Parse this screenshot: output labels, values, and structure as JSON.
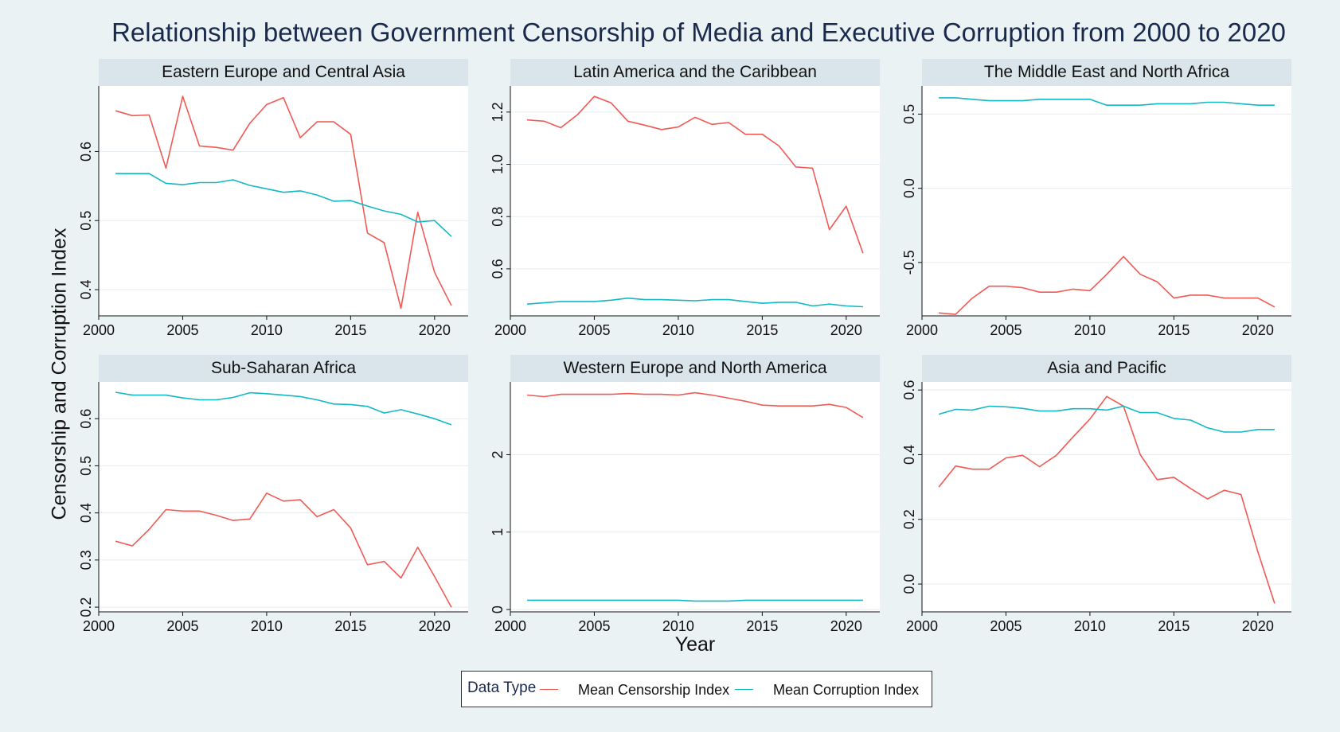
{
  "title": "Relationship between Government Censorship of Media and Executive Corruption from 2000 to 2020",
  "ylabel": "Censorship and Corruption Index",
  "xlabel": "Year",
  "legend": {
    "title": "Data Type",
    "items": [
      {
        "label": "Mean Censorship Index",
        "color": "#f05a55"
      },
      {
        "label": "Mean Corruption Index",
        "color": "#12b8c4"
      }
    ]
  },
  "chart_data": [
    {
      "type": "line",
      "title": "Eastern Europe and Central Asia",
      "x": [
        2001,
        2002,
        2003,
        2004,
        2005,
        2006,
        2007,
        2008,
        2009,
        2010,
        2011,
        2012,
        2013,
        2014,
        2015,
        2016,
        2017,
        2018,
        2019,
        2020,
        2021
      ],
      "xlim": [
        2000,
        2022
      ],
      "xticks": [
        2000,
        2005,
        2010,
        2015,
        2020
      ],
      "ylim": [
        0.362,
        0.695
      ],
      "yticks": [
        0.4,
        0.5,
        0.6
      ],
      "ytick_labels": [
        "0.4",
        "0.5",
        "0.6"
      ],
      "series": [
        {
          "name": "Mean Censorship Index",
          "values": [
            0.659,
            0.652,
            0.653,
            0.576,
            0.68,
            0.608,
            0.606,
            0.602,
            0.641,
            0.668,
            0.678,
            0.62,
            0.643,
            0.643,
            0.625,
            0.482,
            0.468,
            0.373,
            0.512,
            0.425,
            0.377
          ]
        },
        {
          "name": "Mean Corruption Index",
          "values": [
            0.568,
            0.568,
            0.568,
            0.554,
            0.552,
            0.555,
            0.555,
            0.559,
            0.551,
            0.546,
            0.541,
            0.543,
            0.537,
            0.528,
            0.529,
            0.521,
            0.514,
            0.509,
            0.498,
            0.5,
            0.477
          ]
        }
      ]
    },
    {
      "type": "line",
      "title": "Latin America and the Caribbean",
      "x": [
        2001,
        2002,
        2003,
        2004,
        2005,
        2006,
        2007,
        2008,
        2009,
        2010,
        2011,
        2012,
        2013,
        2014,
        2015,
        2016,
        2017,
        2018,
        2019,
        2020,
        2021
      ],
      "xlim": [
        2000,
        2022
      ],
      "xticks": [
        2000,
        2005,
        2010,
        2015,
        2020
      ],
      "ylim": [
        0.42,
        1.3
      ],
      "yticks": [
        0.6,
        0.8,
        1.0,
        1.2
      ],
      "ytick_labels": [
        "0.6",
        "0.8",
        "1.0",
        "1.2"
      ],
      "series": [
        {
          "name": "Mean Censorship Index",
          "values": [
            1.17,
            1.165,
            1.14,
            1.19,
            1.26,
            1.235,
            1.165,
            1.15,
            1.133,
            1.143,
            1.18,
            1.153,
            1.16,
            1.115,
            1.115,
            1.07,
            0.99,
            0.985,
            0.75,
            0.84,
            0.66
          ]
        },
        {
          "name": "Mean Corruption Index",
          "values": [
            0.465,
            0.47,
            0.475,
            0.475,
            0.475,
            0.48,
            0.488,
            0.482,
            0.482,
            0.48,
            0.478,
            0.482,
            0.482,
            0.475,
            0.468,
            0.472,
            0.472,
            0.458,
            0.465,
            0.458,
            0.455
          ]
        }
      ]
    },
    {
      "type": "line",
      "title": "The Middle East and North Africa",
      "x": [
        2001,
        2002,
        2003,
        2004,
        2005,
        2006,
        2007,
        2008,
        2009,
        2010,
        2011,
        2012,
        2013,
        2014,
        2015,
        2016,
        2017,
        2018,
        2019,
        2020,
        2021
      ],
      "xlim": [
        2000,
        2022
      ],
      "xticks": [
        2000,
        2005,
        2010,
        2015,
        2020
      ],
      "ylim": [
        -0.86,
        0.69
      ],
      "yticks": [
        -0.5,
        0.0,
        0.5
      ],
      "ytick_labels": [
        "-0.5",
        "0.0",
        "0.5"
      ],
      "series": [
        {
          "name": "Mean Censorship Index",
          "values": [
            -0.84,
            -0.85,
            -0.74,
            -0.66,
            -0.66,
            -0.67,
            -0.7,
            -0.7,
            -0.68,
            -0.69,
            -0.58,
            -0.46,
            -0.58,
            -0.63,
            -0.74,
            -0.72,
            -0.72,
            -0.74,
            -0.74,
            -0.74,
            -0.8
          ]
        },
        {
          "name": "Mean Corruption Index",
          "values": [
            0.61,
            0.61,
            0.6,
            0.59,
            0.59,
            0.59,
            0.6,
            0.6,
            0.6,
            0.6,
            0.56,
            0.56,
            0.56,
            0.57,
            0.57,
            0.57,
            0.58,
            0.58,
            0.57,
            0.56,
            0.56
          ]
        }
      ]
    },
    {
      "type": "line",
      "title": "Sub-Saharan Africa",
      "x": [
        2001,
        2002,
        2003,
        2004,
        2005,
        2006,
        2007,
        2008,
        2009,
        2010,
        2011,
        2012,
        2013,
        2014,
        2015,
        2016,
        2017,
        2018,
        2019,
        2020,
        2021
      ],
      "xlim": [
        2000,
        2022
      ],
      "xticks": [
        2000,
        2005,
        2010,
        2015,
        2020
      ],
      "ylim": [
        0.19,
        0.678
      ],
      "yticks": [
        0.2,
        0.3,
        0.4,
        0.5,
        0.6
      ],
      "ytick_labels": [
        "0.2",
        "0.3",
        "0.4",
        "0.5",
        "0.6"
      ],
      "series": [
        {
          "name": "Mean Censorship Index",
          "values": [
            0.34,
            0.33,
            0.365,
            0.407,
            0.404,
            0.404,
            0.395,
            0.384,
            0.387,
            0.442,
            0.425,
            0.428,
            0.392,
            0.407,
            0.368,
            0.29,
            0.297,
            0.262,
            0.327,
            0.265,
            0.2
          ]
        },
        {
          "name": "Mean Corruption Index",
          "values": [
            0.656,
            0.65,
            0.65,
            0.65,
            0.644,
            0.64,
            0.64,
            0.645,
            0.655,
            0.653,
            0.65,
            0.647,
            0.64,
            0.631,
            0.63,
            0.626,
            0.612,
            0.619,
            0.61,
            0.6,
            0.587
          ]
        }
      ]
    },
    {
      "type": "line",
      "title": "Western Europe and North America",
      "x": [
        2001,
        2002,
        2003,
        2004,
        2005,
        2006,
        2007,
        2008,
        2009,
        2010,
        2011,
        2012,
        2013,
        2014,
        2015,
        2016,
        2017,
        2018,
        2019,
        2020,
        2021
      ],
      "xlim": [
        2000,
        2022
      ],
      "xticks": [
        2000,
        2005,
        2010,
        2015,
        2020
      ],
      "ylim": [
        -0.03,
        2.94
      ],
      "yticks": [
        0,
        1,
        2
      ],
      "ytick_labels": [
        "0",
        "1",
        "2"
      ],
      "series": [
        {
          "name": "Mean Censorship Index",
          "values": [
            2.77,
            2.75,
            2.78,
            2.78,
            2.78,
            2.78,
            2.79,
            2.78,
            2.78,
            2.77,
            2.8,
            2.77,
            2.73,
            2.69,
            2.64,
            2.63,
            2.63,
            2.63,
            2.65,
            2.61,
            2.48
          ]
        },
        {
          "name": "Mean Corruption Index",
          "values": [
            0.12,
            0.12,
            0.12,
            0.12,
            0.12,
            0.12,
            0.12,
            0.12,
            0.12,
            0.12,
            0.11,
            0.11,
            0.11,
            0.12,
            0.12,
            0.12,
            0.12,
            0.12,
            0.12,
            0.12,
            0.12
          ]
        }
      ]
    },
    {
      "type": "line",
      "title": "Asia and Pacific",
      "x": [
        2001,
        2002,
        2003,
        2004,
        2005,
        2006,
        2007,
        2008,
        2009,
        2010,
        2011,
        2012,
        2013,
        2014,
        2015,
        2016,
        2017,
        2018,
        2019,
        2020,
        2021
      ],
      "xlim": [
        2000,
        2022
      ],
      "xticks": [
        2000,
        2005,
        2010,
        2015,
        2020
      ],
      "ylim": [
        -0.086,
        0.625
      ],
      "yticks": [
        0.0,
        0.2,
        0.4,
        0.6
      ],
      "ytick_labels": [
        "0.0",
        "0.2",
        "0.4",
        "0.6"
      ],
      "series": [
        {
          "name": "Mean Censorship Index",
          "values": [
            0.3,
            0.365,
            0.355,
            0.355,
            0.39,
            0.398,
            0.363,
            0.398,
            0.455,
            0.51,
            0.58,
            0.55,
            0.4,
            0.323,
            0.33,
            0.295,
            0.263,
            0.29,
            0.277,
            0.1,
            -0.06
          ]
        },
        {
          "name": "Mean Corruption Index",
          "values": [
            0.525,
            0.54,
            0.538,
            0.55,
            0.548,
            0.543,
            0.535,
            0.535,
            0.542,
            0.542,
            0.538,
            0.55,
            0.53,
            0.53,
            0.512,
            0.507,
            0.483,
            0.47,
            0.47,
            0.478,
            0.478
          ]
        }
      ]
    }
  ]
}
